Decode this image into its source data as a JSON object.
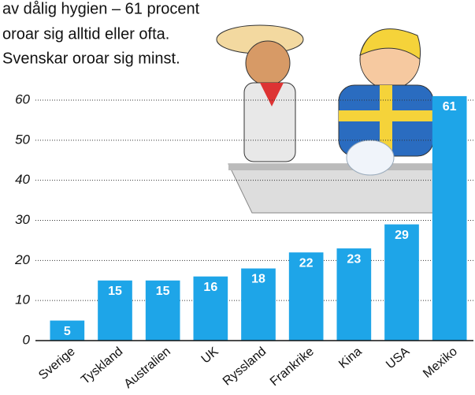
{
  "chart_data": {
    "type": "bar",
    "annotations": [
      "av dålig hygien – 61 procent",
      "oroar sig alltid eller ofta.",
      "Svenskar oroar sig minst."
    ],
    "categories": [
      "Sverige",
      "Tyskland",
      "Australien",
      "UK",
      "Ryssland",
      "Frankrike",
      "Kina",
      "USA",
      "Mexiko"
    ],
    "values": [
      5,
      15,
      15,
      16,
      18,
      22,
      23,
      29,
      61
    ],
    "color": "#1ea5e8",
    "ylim": [
      0,
      60
    ],
    "yticks": [
      0,
      10,
      20,
      30,
      40,
      50,
      60
    ],
    "grid": true
  }
}
